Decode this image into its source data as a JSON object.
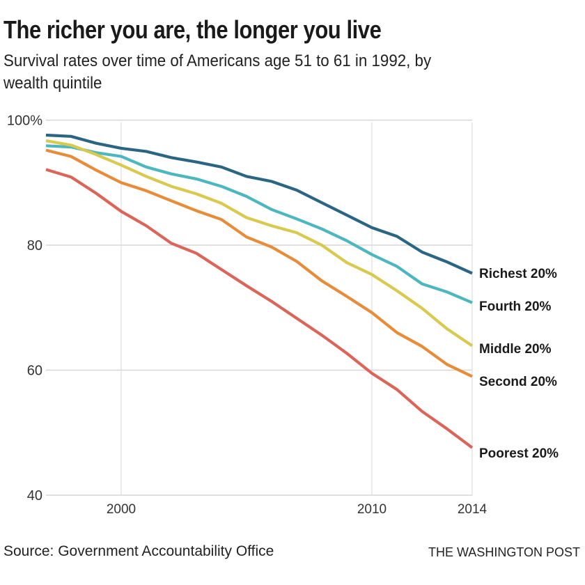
{
  "header": {
    "title": "The richer you are, the longer you live",
    "subtitle_line1": "Survival rates over time of Americans age 51 to 61 in 1992, by",
    "subtitle_line2": "wealth quintile"
  },
  "footer": {
    "source": "Source: Government Accountability Office",
    "credit": "THE WASHINGTON POST"
  },
  "chart_data": {
    "type": "line",
    "title": "The richer you are, the longer you live",
    "subtitle": "Survival rates over time of Americans age 51 to 61 in 1992, by wealth quintile",
    "xlabel": "",
    "ylabel": "",
    "x": [
      1997,
      1998,
      1999,
      2000,
      2001,
      2002,
      2003,
      2004,
      2005,
      2006,
      2007,
      2008,
      2009,
      2010,
      2011,
      2012,
      2013,
      2014
    ],
    "xlim": [
      1997,
      2014
    ],
    "ylim": [
      40,
      100
    ],
    "x_ticks": [
      {
        "value": 2000,
        "label": "2000"
      },
      {
        "value": 2010,
        "label": "2010"
      },
      {
        "value": 2014,
        "label": "2014"
      }
    ],
    "y_ticks": [
      {
        "value": 100,
        "label": "100%"
      },
      {
        "value": 80,
        "label": "80"
      },
      {
        "value": 60,
        "label": "60"
      },
      {
        "value": 40,
        "label": "40"
      }
    ],
    "grid": true,
    "legend": "direct labels at right end of lines",
    "series": [
      {
        "name": "Richest 20%",
        "color": "#2a6584",
        "values": [
          97.6,
          97.4,
          96.3,
          95.5,
          95.0,
          94.0,
          93.3,
          92.5,
          91.0,
          90.2,
          88.8,
          86.8,
          84.8,
          82.8,
          81.4,
          78.9,
          77.3,
          75.5
        ]
      },
      {
        "name": "Fourth 20%",
        "color": "#4db7c0",
        "values": [
          95.9,
          95.7,
          94.8,
          94.2,
          92.5,
          91.4,
          90.6,
          89.4,
          87.8,
          85.7,
          84.2,
          82.6,
          80.7,
          78.5,
          76.6,
          73.8,
          72.5,
          70.8
        ]
      },
      {
        "name": "Middle 20%",
        "color": "#d9c94f",
        "values": [
          96.7,
          96.0,
          94.5,
          92.8,
          91.0,
          89.4,
          88.2,
          86.7,
          84.4,
          83.1,
          82.0,
          80.0,
          77.2,
          75.3,
          72.7,
          69.9,
          66.6,
          63.9
        ]
      },
      {
        "name": "Second 20%",
        "color": "#e88c3a",
        "values": [
          95.2,
          94.2,
          92.0,
          90.0,
          88.7,
          87.1,
          85.5,
          84.1,
          81.3,
          79.7,
          77.4,
          74.3,
          71.8,
          69.2,
          66.0,
          63.8,
          60.9,
          59.0
        ]
      },
      {
        "name": "Poorest 20%",
        "color": "#db6558",
        "values": [
          92.1,
          90.9,
          88.3,
          85.4,
          83.1,
          80.3,
          78.7,
          76.1,
          73.5,
          71.0,
          68.3,
          65.6,
          62.7,
          59.5,
          56.9,
          53.4,
          50.6,
          47.6
        ]
      }
    ]
  }
}
